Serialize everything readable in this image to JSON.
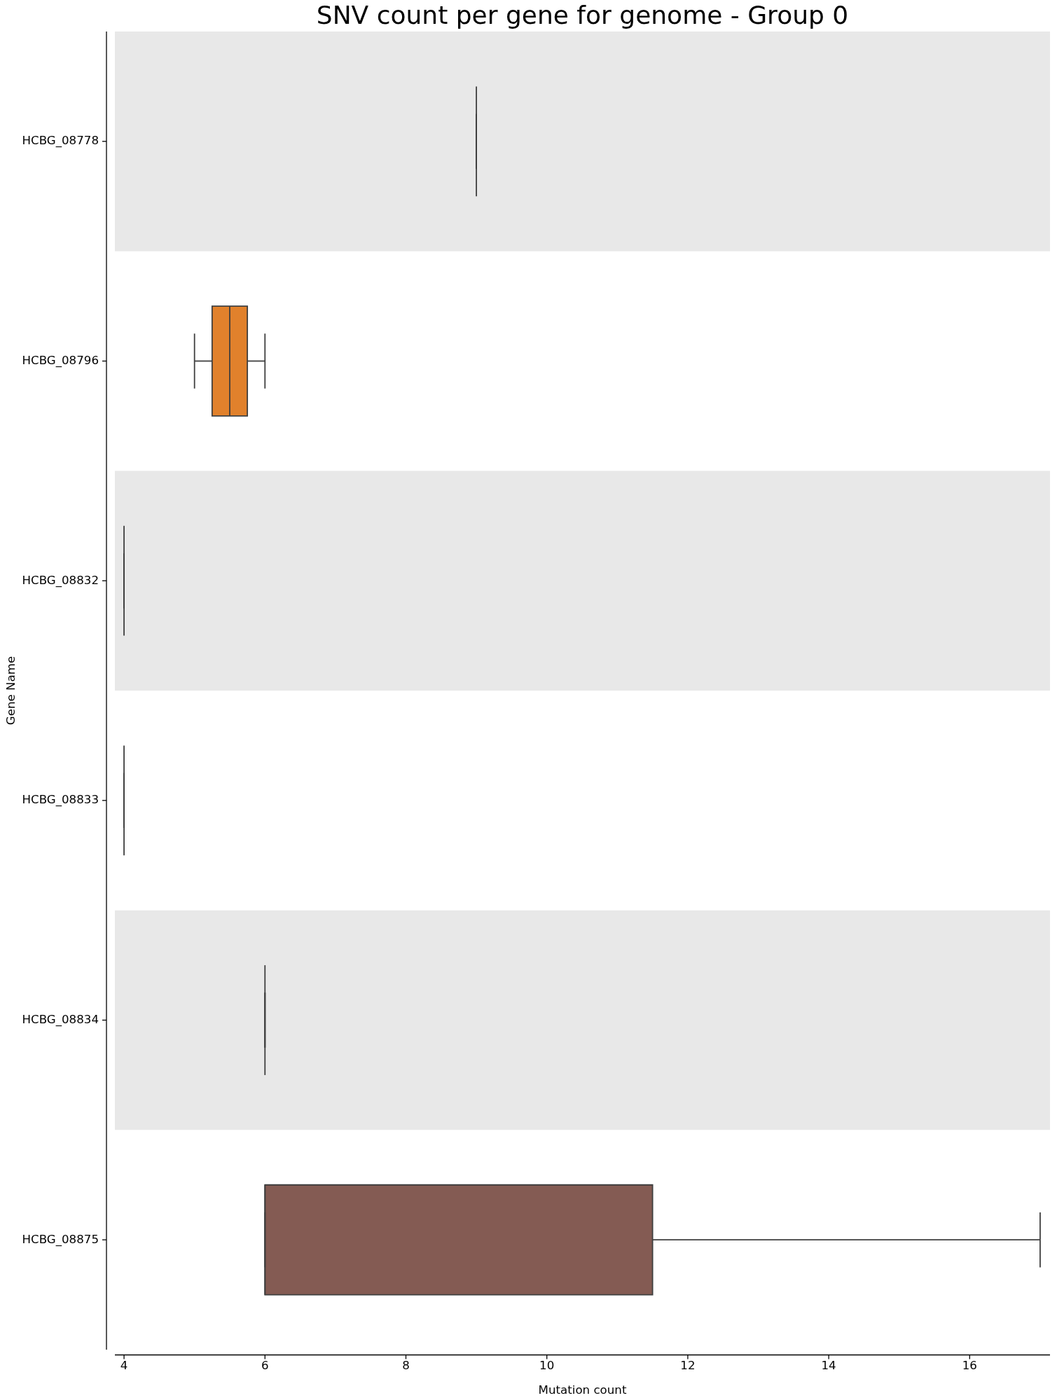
{
  "chart_data": {
    "type": "box",
    "title": "SNV count per gene for genome - Group 0",
    "xlabel": "Mutation count",
    "ylabel": "Gene Name",
    "orientation": "horizontal",
    "categories": [
      "HCBG_08778",
      "HCBG_08796",
      "HCBG_08832",
      "HCBG_08833",
      "HCBG_08834",
      "HCBG_08875"
    ],
    "boxes": [
      {
        "low": 9,
        "q1": 9,
        "median": 9,
        "q3": 9,
        "high": 9
      },
      {
        "low": 5,
        "q1": 5.25,
        "median": 5.5,
        "q3": 5.75,
        "high": 6
      },
      {
        "low": 4,
        "q1": 4,
        "median": 4,
        "q3": 4,
        "high": 4
      },
      {
        "low": 4,
        "q1": 4,
        "median": 4,
        "q3": 4,
        "high": 4
      },
      {
        "low": 6,
        "q1": 6,
        "median": 6,
        "q3": 6,
        "high": 6
      },
      {
        "low": 6,
        "q1": 6,
        "median": 6,
        "q3": 11.5,
        "high": 17
      }
    ],
    "colors": [
      "#3f3f3f",
      "#e1812c",
      "#3f3f3f",
      "#3f3f3f",
      "#3f3f3f",
      "#845b53"
    ],
    "xlim": [
      3.87,
      17.14
    ],
    "xticks": [
      4,
      6,
      8,
      10,
      12,
      14,
      16
    ],
    "bands": [
      {
        "axis": "y",
        "from": "HCBG_08778",
        "to": "HCBG_08778",
        "color": "#e8e8e8"
      },
      {
        "axis": "y",
        "from": "HCBG_08832",
        "to": "HCBG_08832",
        "color": "#e8e8e8"
      },
      {
        "axis": "y",
        "from": "HCBG_08834",
        "to": "HCBG_08834",
        "color": "#e8e8e8"
      }
    ]
  }
}
